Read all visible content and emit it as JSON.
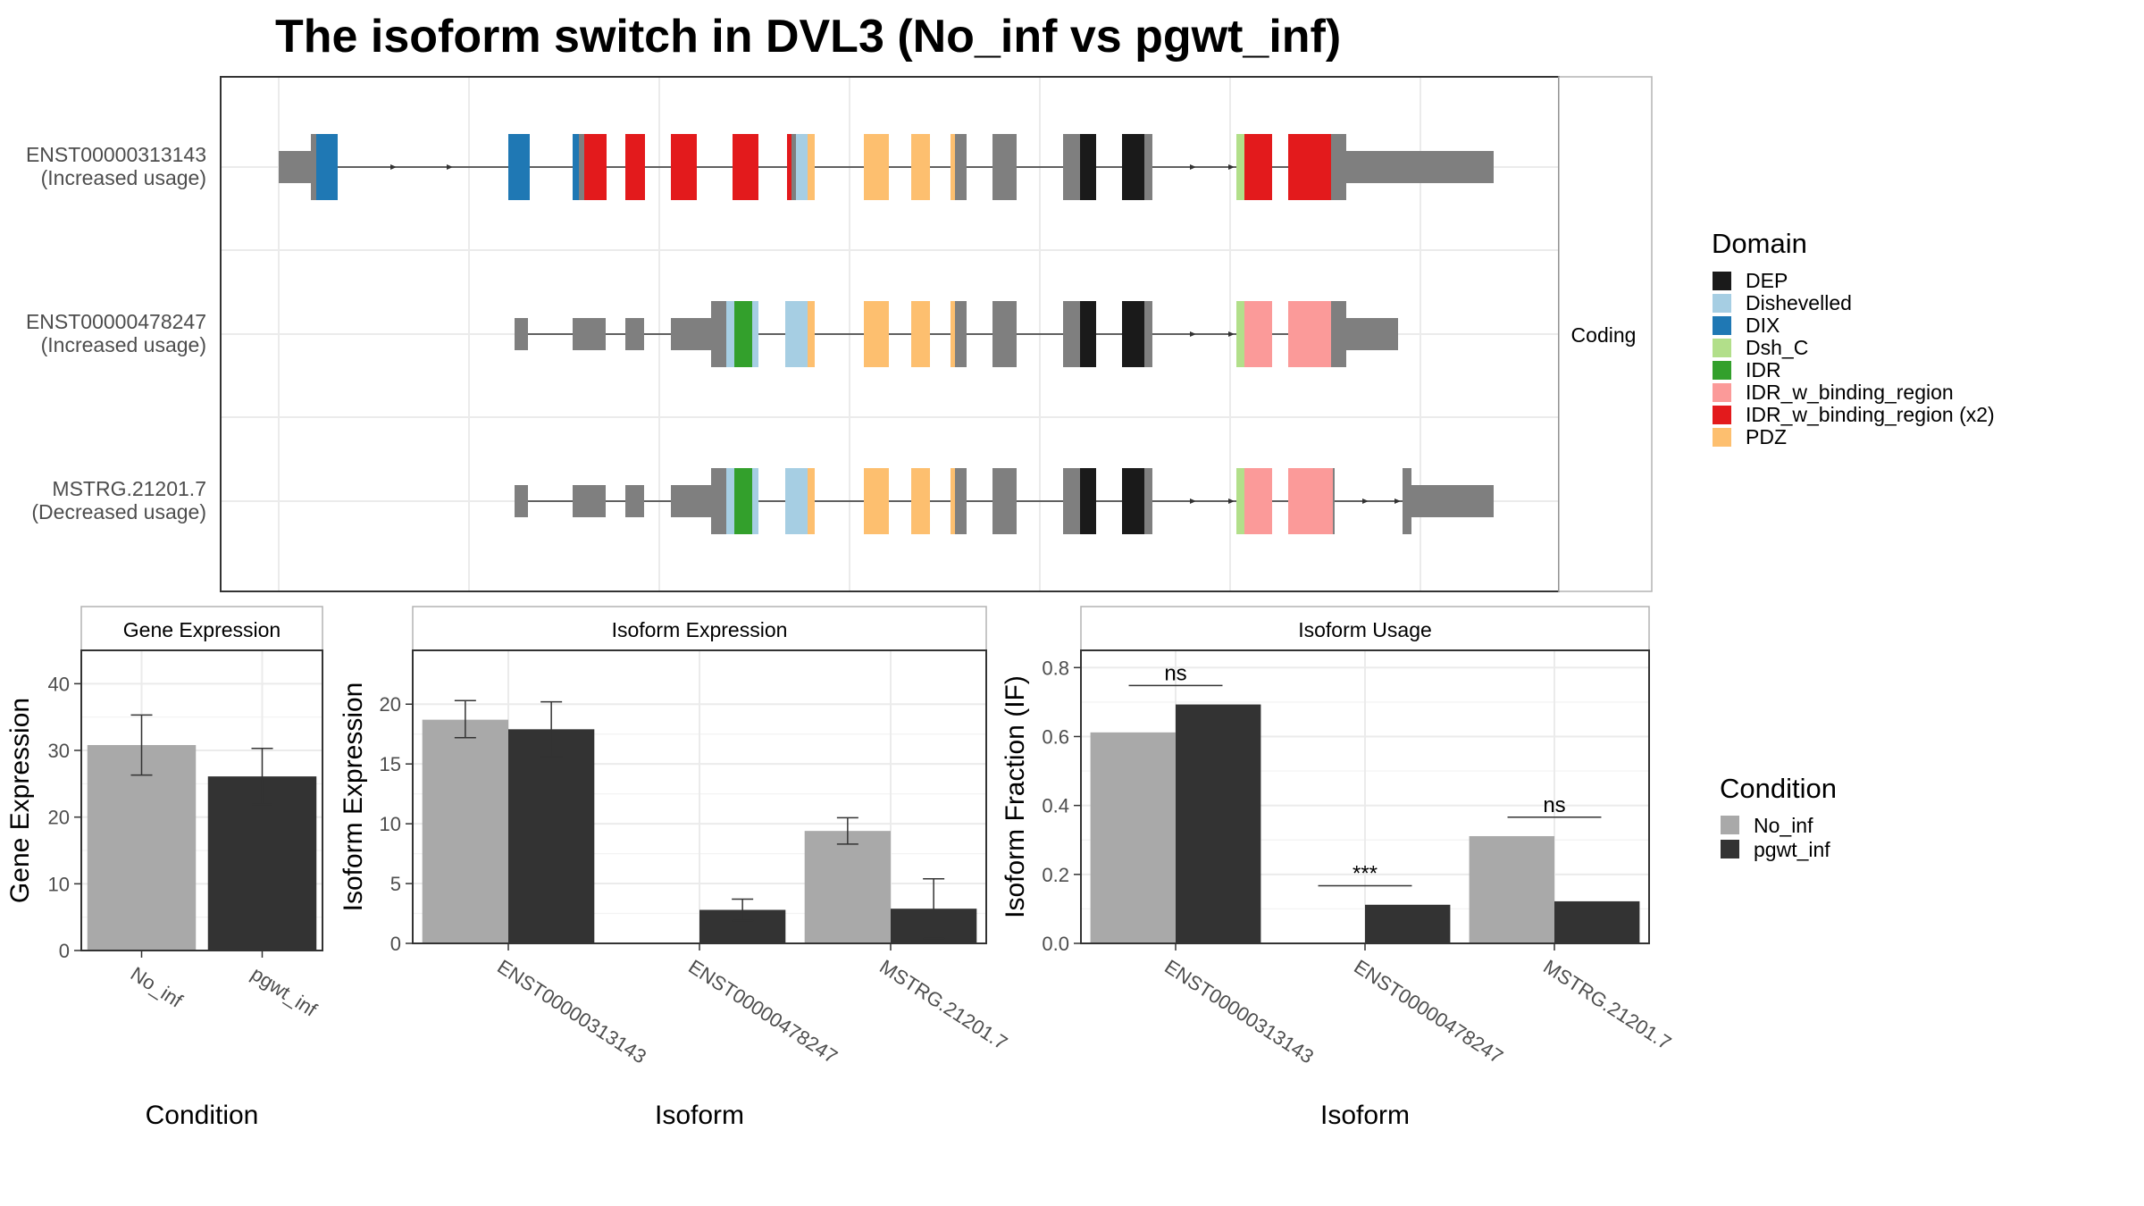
{
  "title": "The isoform switch in DVL3 (No_inf vs pgwt_inf)",
  "domain_colors": {
    "DEP": "#1a1a1a",
    "Dishevelled": "#a6cee3",
    "DIX": "#1f78b4",
    "Dsh_C": "#b2df8a",
    "IDR": "#33a02c",
    "IDR_w_binding_region": "#fb9a99",
    "IDR_w_binding_region (x2)": "#e31a1c",
    "PDZ": "#fdbf6f"
  },
  "condition_colors": {
    "No_inf": "#a9a9a9",
    "pgwt_inf": "#333333"
  },
  "transcript_panel": {
    "strip": "Coding",
    "isoforms": [
      {
        "id": "ENST00000313143",
        "usage": "(Increased usage)"
      },
      {
        "id": "ENST00000478247",
        "usage": "(Increased usage)"
      },
      {
        "id": "MSTRG.21201.7",
        "usage": "(Decreased usage)"
      }
    ]
  },
  "legends": {
    "domain": {
      "title": "Domain",
      "items": [
        "DEP",
        "Dishevelled",
        "DIX",
        "Dsh_C",
        "IDR",
        "IDR_w_binding_region",
        "IDR_w_binding_region (x2)",
        "PDZ"
      ]
    },
    "condition": {
      "title": "Condition",
      "items": [
        "No_inf",
        "pgwt_inf"
      ]
    }
  },
  "chart_data": [
    {
      "panel": "Gene Expression",
      "type": "bar",
      "categories": [
        "No_inf",
        "pgwt_inf"
      ],
      "values": [
        30.8,
        26.1
      ],
      "error_low": [
        26.3,
        21.9
      ],
      "error_high": [
        35.3,
        30.3
      ],
      "xlabel": "Condition",
      "ylabel": "Gene Expression",
      "ylim": [
        0,
        45
      ],
      "yticks": [
        0,
        10,
        20,
        30,
        40
      ]
    },
    {
      "panel": "Isoform Expression",
      "type": "bar",
      "categories": [
        "ENST00000313143",
        "ENST00000478247",
        "MSTRG.21201.7"
      ],
      "series": [
        {
          "name": "No_inf",
          "values": [
            18.7,
            0.0,
            9.4
          ],
          "error_low": [
            17.2,
            0.0,
            8.3
          ],
          "error_high": [
            20.3,
            0.0,
            10.5
          ]
        },
        {
          "name": "pgwt_inf",
          "values": [
            17.9,
            2.8,
            2.9
          ],
          "error_low": [
            15.6,
            1.9,
            0.4
          ],
          "error_high": [
            20.2,
            3.7,
            5.4
          ]
        }
      ],
      "xlabel": "Isoform",
      "ylabel": "Isoform Expression",
      "ylim": [
        0,
        24.5
      ],
      "yticks": [
        0,
        5,
        10,
        15,
        20
      ]
    },
    {
      "panel": "Isoform Usage",
      "type": "bar",
      "categories": [
        "ENST00000313143",
        "ENST00000478247",
        "MSTRG.21201.7"
      ],
      "series": [
        {
          "name": "No_inf",
          "values": [
            0.612,
            0.0,
            0.311
          ]
        },
        {
          "name": "pgwt_inf",
          "values": [
            0.693,
            0.112,
            0.122
          ]
        }
      ],
      "significance": [
        "ns",
        "***",
        "ns"
      ],
      "xlabel": "Isoform",
      "ylabel": "Isoform Fraction (IF)",
      "ylim": [
        0,
        0.85
      ],
      "yticks": [
        0.0,
        0.2,
        0.4,
        0.6,
        0.8
      ]
    }
  ]
}
